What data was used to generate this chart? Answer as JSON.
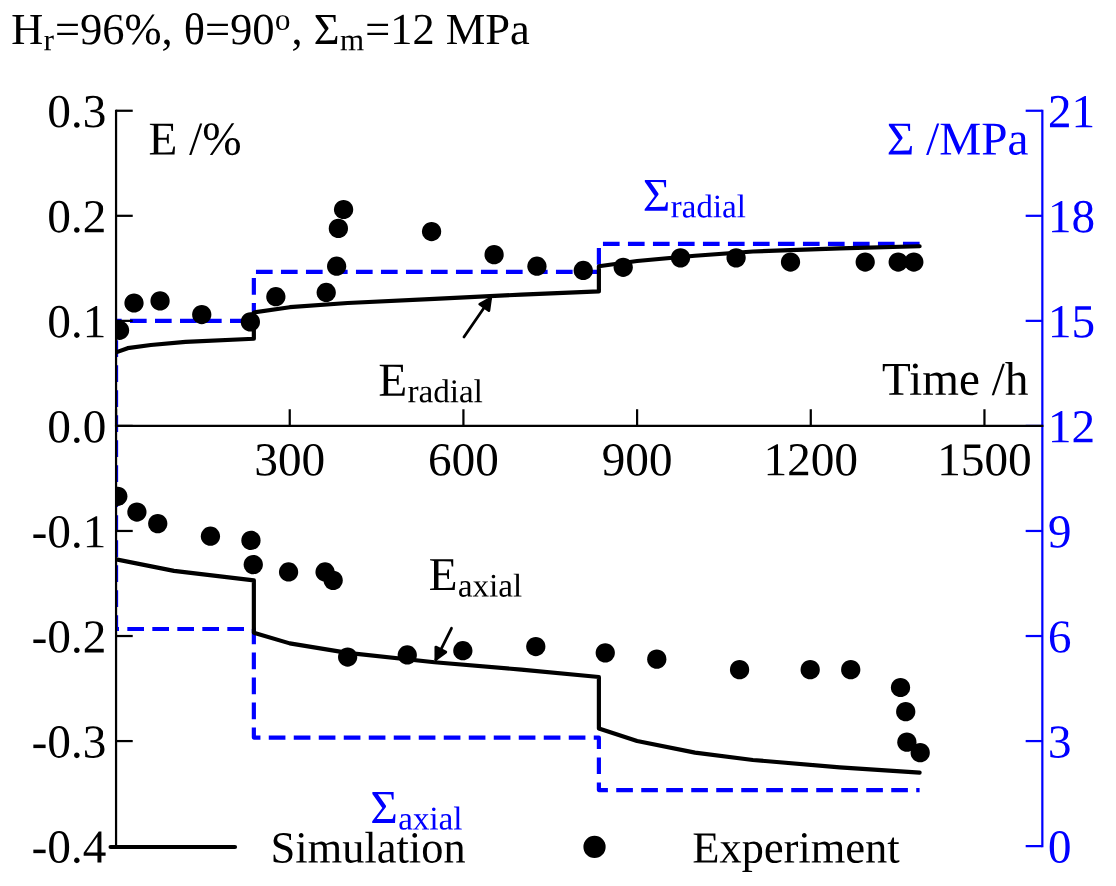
{
  "chart_data": {
    "type": "line",
    "title": "H$_{r}$=96%, θ=90$^{o}$, Σ$_{m}$=12 MPa",
    "xlabel": "Time /h",
    "ylabel": "E /%",
    "y2label": "Σ /MPa",
    "xlim": [
      0,
      1600
    ],
    "xticks": [
      {
        "value": 0,
        "label": null
      },
      300,
      600,
      900,
      1200,
      1500
    ],
    "ylim": [
      -0.4,
      0.3
    ],
    "yticks": [
      -0.4,
      -0.3,
      -0.2,
      -0.1,
      {
        "value": 0,
        "label": "0.0"
      },
      0.1,
      0.2,
      0.3
    ],
    "y2lim": [
      0,
      21
    ],
    "y2ticks": [
      0,
      3,
      6,
      9,
      12,
      15,
      18,
      21
    ],
    "grid": false,
    "legend": "bottom",
    "series": [
      {
        "name": "Simulation",
        "color": "#000000",
        "line_style": "solid",
        "marker": "none",
        "x": [
          0,
          20,
          60,
          120,
          238,
          238,
          300,
          400,
          550,
          700,
          834,
          834,
          900,
          1000,
          1100,
          1250,
          1388,
          null,
          0,
          100,
          238,
          238,
          300,
          400,
          550,
          700,
          834,
          834,
          900,
          1000,
          1100,
          1250,
          1388
        ],
        "values": [
          0.07,
          0.074,
          0.077,
          0.08,
          0.083,
          0.108,
          0.113,
          0.117,
          0.121,
          0.125,
          0.128,
          0.152,
          0.157,
          0.162,
          0.166,
          0.169,
          0.171,
          null,
          -0.127,
          -0.138,
          -0.147,
          -0.197,
          -0.207,
          -0.216,
          -0.225,
          -0.232,
          -0.239,
          -0.288,
          -0.3,
          -0.311,
          -0.318,
          -0.325,
          -0.33
        ]
      },
      {
        "name": "Experiment",
        "type": "scatter",
        "color": "#000000",
        "marker": "circle",
        "x": [
          6,
          31,
          76,
          148,
          232,
          276,
          363,
          381,
          384,
          393,
          545,
          653,
          727,
          807,
          876,
          975,
          1071,
          1165,
          1294,
          1351,
          1378,
          3,
          36,
          72,
          163,
          233,
          237,
          298,
          361,
          375,
          400,
          503,
          599,
          725,
          845,
          934,
          1077,
          1199,
          1269,
          1355,
          1364,
          1366,
          1389
        ],
        "values": [
          0.091,
          0.117,
          0.119,
          0.106,
          0.099,
          0.123,
          0.127,
          0.152,
          0.188,
          0.206,
          0.185,
          0.163,
          0.152,
          0.148,
          0.151,
          0.16,
          0.16,
          0.156,
          0.156,
          0.156,
          0.156,
          -0.067,
          -0.082,
          -0.093,
          -0.105,
          -0.109,
          -0.132,
          -0.139,
          -0.139,
          -0.147,
          -0.22,
          -0.218,
          -0.214,
          -0.21,
          -0.216,
          -0.222,
          -0.232,
          -0.232,
          -0.232,
          -0.249,
          -0.272,
          -0.301,
          -0.311
        ]
      },
      {
        "axis": "y2",
        "color": "#0000ff",
        "line_style": "dashed",
        "marker": "none",
        "x": [
          1388,
          834,
          834,
          238,
          238,
          0,
          0,
          0,
          238,
          238,
          834,
          834,
          1388
        ],
        "values": [
          17.2,
          17.2,
          16.4,
          16.4,
          15,
          15,
          12,
          6.2,
          6.2,
          3.1,
          3.1,
          1.6,
          1.6
        ]
      }
    ],
    "annotations": [
      {
        "text": "E$_{radial}$",
        "x": 650,
        "y": 0.124
      },
      {
        "text": "E$_{axial}$",
        "x": 550,
        "y": -0.225
      },
      {
        "text": "Σ$_{radial}$",
        "x": 1000,
        "y": 0.173
      },
      {
        "text": "Σ$_{axial}$",
        "x": 520,
        "y": -0.296
      }
    ]
  }
}
